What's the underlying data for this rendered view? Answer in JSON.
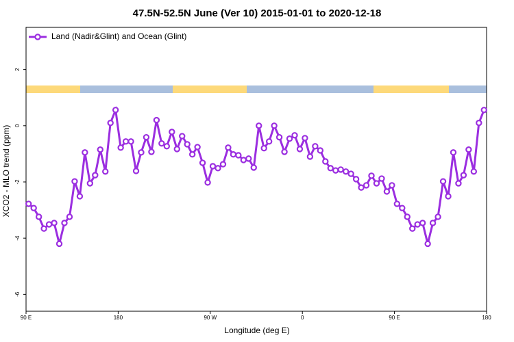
{
  "chart_data": {
    "type": "line",
    "title": "47.5N-52.5N June (Ver 10)   2015-01-01 to 2020-12-18",
    "x_label": "Longitude (deg E)",
    "y_label": "XCO2 - MLO trend (ppm)",
    "xlim": [
      90,
      540
    ],
    "ylim": [
      -6.6,
      3.5
    ],
    "xticks": [
      {
        "value": 90,
        "label": "90 E"
      },
      {
        "value": 180,
        "label": "180"
      },
      {
        "value": 270,
        "label": "90 W"
      },
      {
        "value": 360,
        "label": "0"
      },
      {
        "value": 450,
        "label": "90 E"
      },
      {
        "value": 540,
        "label": "180"
      }
    ],
    "yticks": [
      2,
      0,
      -2,
      -4,
      -6
    ],
    "legend": "top-left",
    "x": [
      92.5,
      97.5,
      102.5,
      107.5,
      112.5,
      117.5,
      122.5,
      127.5,
      132.5,
      137.5,
      142.5,
      147.5,
      152.5,
      157.5,
      162.5,
      167.5,
      172.5,
      177.5,
      182.5,
      187.5,
      192.5,
      197.5,
      202.5,
      207.5,
      212.5,
      217.5,
      222.5,
      227.5,
      232.5,
      237.5,
      242.5,
      247.5,
      252.5,
      257.5,
      262.5,
      267.5,
      272.5,
      277.5,
      282.5,
      287.5,
      292.5,
      297.5,
      302.5,
      307.5,
      312.5,
      317.5,
      322.5,
      327.5,
      332.5,
      337.5,
      342.5,
      347.5,
      352.5,
      357.5,
      362.5,
      367.5,
      372.5,
      377.5,
      382.5,
      387.5,
      392.5,
      397.5,
      402.5,
      407.5,
      412.5,
      417.5,
      422.5,
      427.5,
      432.5,
      437.5,
      442.5,
      447.5,
      452.5,
      457.5,
      462.5,
      467.5,
      472.5,
      477.5,
      482.5,
      487.5,
      492.5,
      497.5,
      502.5,
      507.5,
      512.5,
      517.5,
      522.5,
      527.5,
      532.5,
      537.5
    ],
    "series": [
      {
        "name": "Land (Nadir&Glint) and Ocean (Glint)",
        "color": "#9b2ee0",
        "values": [
          -2.78,
          -2.93,
          -3.24,
          -3.66,
          -3.51,
          -3.46,
          -4.2,
          -3.46,
          -3.24,
          -1.98,
          -2.51,
          -0.95,
          -2.05,
          -1.76,
          -0.85,
          -1.63,
          0.1,
          0.56,
          -0.78,
          -0.56,
          -0.56,
          -1.61,
          -0.95,
          -0.41,
          -0.93,
          0.2,
          -0.63,
          -0.73,
          -0.22,
          -0.83,
          -0.37,
          -0.66,
          -1.02,
          -0.76,
          -1.32,
          -2.02,
          -1.44,
          -1.51,
          -1.37,
          -0.78,
          -1.02,
          -1.05,
          -1.22,
          -1.17,
          -1.49,
          0,
          -0.8,
          -0.56,
          0,
          -0.41,
          -0.93,
          -0.46,
          -0.34,
          -0.83,
          -0.44,
          -1.1,
          -0.73,
          -0.88,
          -1.27,
          -1.51,
          -1.59,
          -1.56,
          -1.63,
          -1.71,
          -1.9,
          -2.2,
          -2.12,
          -1.78,
          -2.05,
          -1.88,
          -2.34,
          -2.12,
          -2.78,
          -2.93,
          -3.24,
          -3.66,
          -3.51,
          -3.46,
          -4.2,
          -3.46,
          -3.24,
          -1.98,
          -2.51,
          -0.95,
          -2.05,
          -1.76,
          -0.85,
          -1.63,
          0.1,
          0.56
        ]
      }
    ]
  }
}
